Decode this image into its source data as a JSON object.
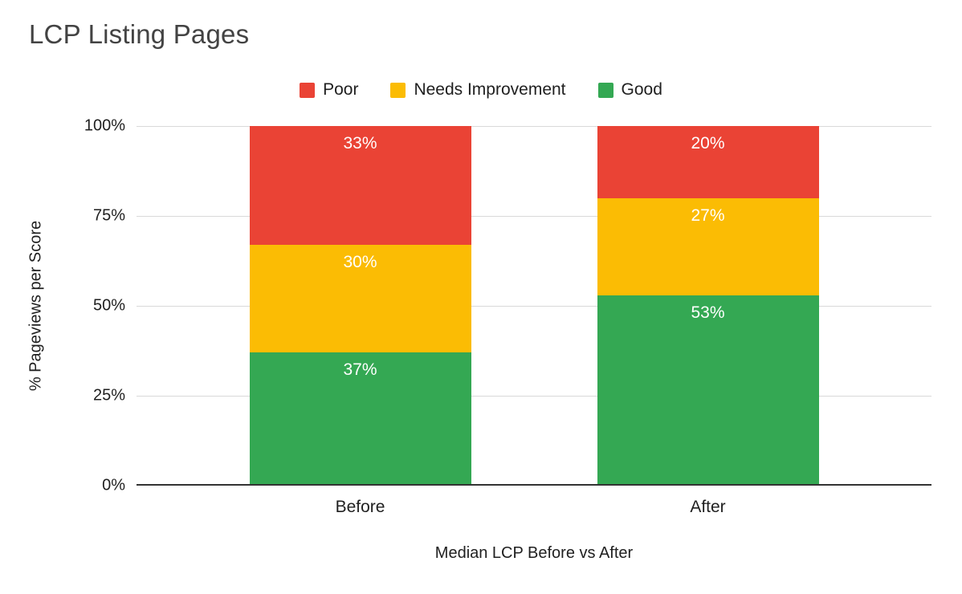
{
  "chart_data": {
    "type": "bar",
    "stacked": true,
    "percent": true,
    "title": "LCP Listing Pages",
    "xlabel": "Median LCP Before vs After",
    "ylabel": "% Pageviews per Score",
    "categories": [
      "Before",
      "After"
    ],
    "series": [
      {
        "name": "Poor",
        "color": "#EA4335",
        "values": [
          33,
          20
        ]
      },
      {
        "name": "Needs Improvement",
        "color": "#FBBC04",
        "values": [
          30,
          27
        ]
      },
      {
        "name": "Good",
        "color": "#34A853",
        "values": [
          37,
          53
        ]
      }
    ],
    "ylim": [
      0,
      100
    ],
    "yticks": [
      "0%",
      "25%",
      "50%",
      "75%",
      "100%"
    ],
    "legend_position": "top",
    "grid": true,
    "colors": {
      "poor": "#EA4335",
      "needs_improvement": "#FBBC04",
      "good": "#34A853",
      "title_text": "#434343",
      "axis_text": "#1f1f1f",
      "gridline": "#d9d9d9",
      "baseline": "#333333",
      "background": "#ffffff"
    }
  }
}
